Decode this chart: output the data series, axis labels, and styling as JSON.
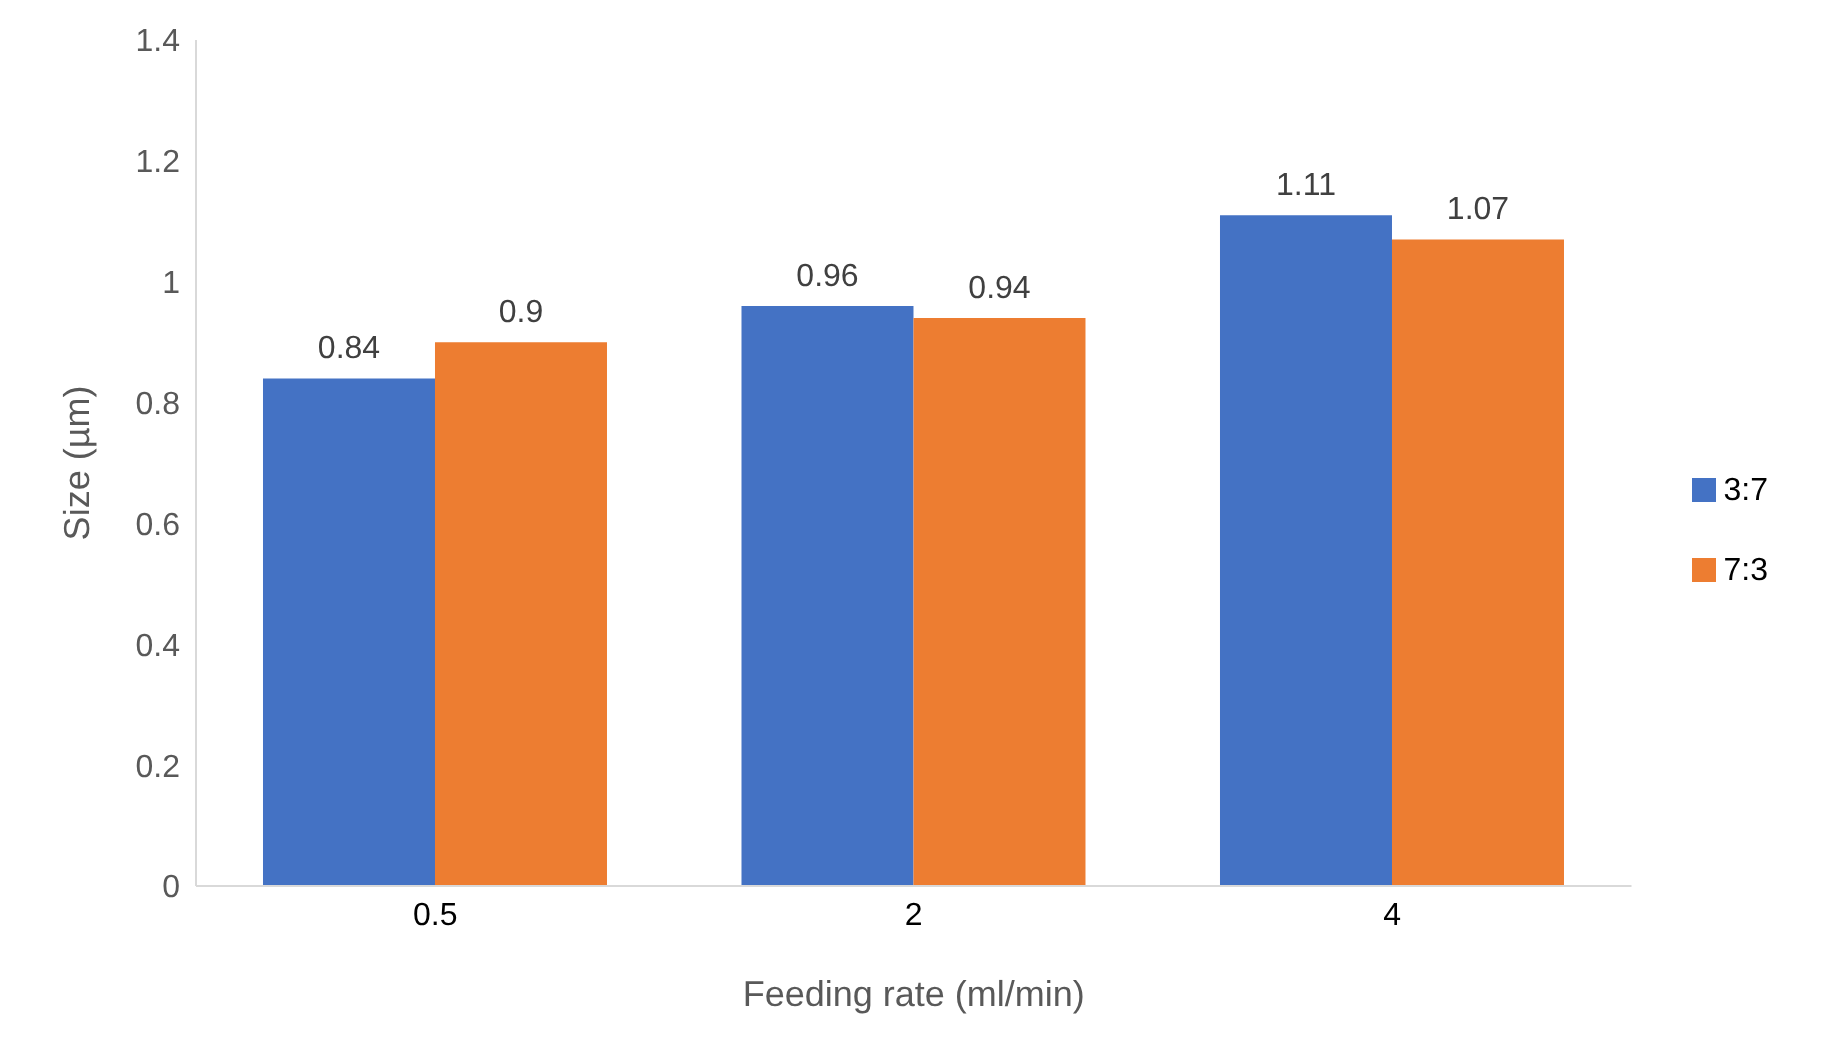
{
  "chart_data": {
    "type": "bar",
    "xlabel": "Feeding rate (ml/min)",
    "ylabel": "Size (µm)",
    "categories": [
      "0.5",
      "2",
      "4"
    ],
    "series": [
      {
        "name": "3:7",
        "color": "#4472c4",
        "values": [
          0.84,
          0.96,
          1.11
        ]
      },
      {
        "name": "7:3",
        "color": "#ed7d31",
        "values": [
          0.9,
          0.94,
          1.07
        ]
      }
    ],
    "ylim": [
      0,
      1.4
    ],
    "yticks": [
      0,
      0.2,
      0.4,
      0.6,
      0.8,
      1,
      1.2,
      1.4
    ],
    "grid": false,
    "legend": "right",
    "data_labels": true
  }
}
